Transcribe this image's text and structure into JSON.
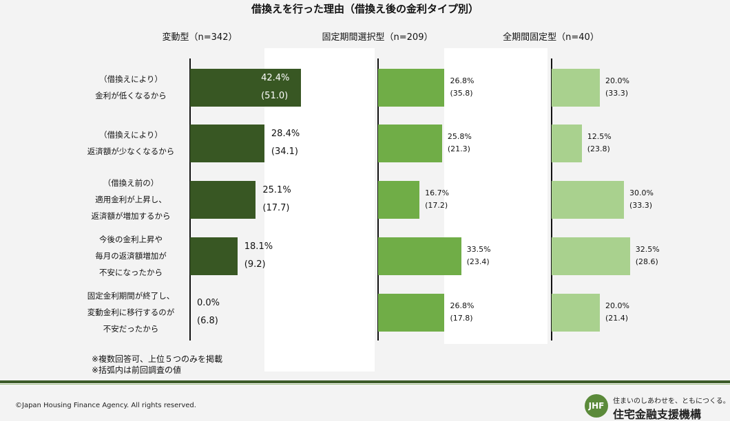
{
  "title": "借換えを行った理由（借換え後の金利タイプ別）",
  "colors": {
    "variable": "#385723",
    "fixed_period": "#70ad47",
    "full_fixed": "#a9d18e"
  },
  "categories": [
    [
      "（借換えにより）",
      "金利が低くなるから"
    ],
    [
      "（借換えにより）",
      "返済額が少なくなるから"
    ],
    [
      "（借換え前の）",
      "適用金利が上昇し、",
      "返済額が増加するから"
    ],
    [
      "今後の金利上昇や",
      "毎月の返済額増加が",
      "不安になったから"
    ],
    [
      "固定金利期間が終了し、",
      "変動金利に移行するのが",
      "不安だったから"
    ]
  ],
  "chart_data": [
    {
      "type": "bar",
      "orientation": "horizontal",
      "title": "変動型（n=342）",
      "series": [
        {
          "name": "",
          "values": [
            42.4,
            28.4,
            25.1,
            18.1,
            0.0
          ],
          "labels": [
            "42.4%",
            "28.4%",
            "25.1%",
            "18.1%",
            "0.0%"
          ]
        },
        {
          "name": "",
          "values": [
            51.0,
            34.1,
            17.7,
            9.2,
            6.8
          ],
          "labels": [
            "(51.0)",
            "(34.1)",
            "(17.7)",
            "(9.2)",
            "(6.8)"
          ]
        }
      ]
    },
    {
      "type": "bar",
      "orientation": "horizontal",
      "title": "固定期間選択型（n=209）",
      "series": [
        {
          "name": "",
          "values": [
            26.8,
            25.8,
            16.7,
            33.5,
            26.8
          ],
          "labels": [
            "26.8%",
            "25.8%",
            "16.7%",
            "33.5%",
            "26.8%"
          ]
        },
        {
          "name": "",
          "values": [
            35.8,
            21.3,
            17.2,
            23.4,
            17.8
          ],
          "labels": [
            "(35.8)",
            "(21.3)",
            "(17.2)",
            "(23.4)",
            "(17.8)"
          ]
        }
      ]
    },
    {
      "type": "bar",
      "orientation": "horizontal",
      "title": "全期間固定型（n=40）",
      "series": [
        {
          "name": "",
          "values": [
            20.0,
            12.5,
            30.0,
            32.5,
            20.0
          ],
          "labels": [
            "20.0%",
            "12.5%",
            "30.0%",
            "32.5%",
            "20.0%"
          ]
        },
        {
          "name": "",
          "values": [
            33.3,
            23.8,
            33.3,
            28.6,
            21.4
          ],
          "labels": [
            "(33.3)",
            "(23.8)",
            "(33.3)",
            "(28.6)",
            "(21.4)"
          ]
        }
      ]
    }
  ],
  "notes": [
    "※複数回答可、上位５つのみを掲載",
    "※括弧内は前回調査の値"
  ],
  "footer": {
    "copyright": "©Japan Housing Finance Agency. All rights reserved.",
    "logo_text": "JHF",
    "slogan": "住まいのしあわせを、ともにつくる。",
    "org_name": "住宅金融支援機構"
  }
}
